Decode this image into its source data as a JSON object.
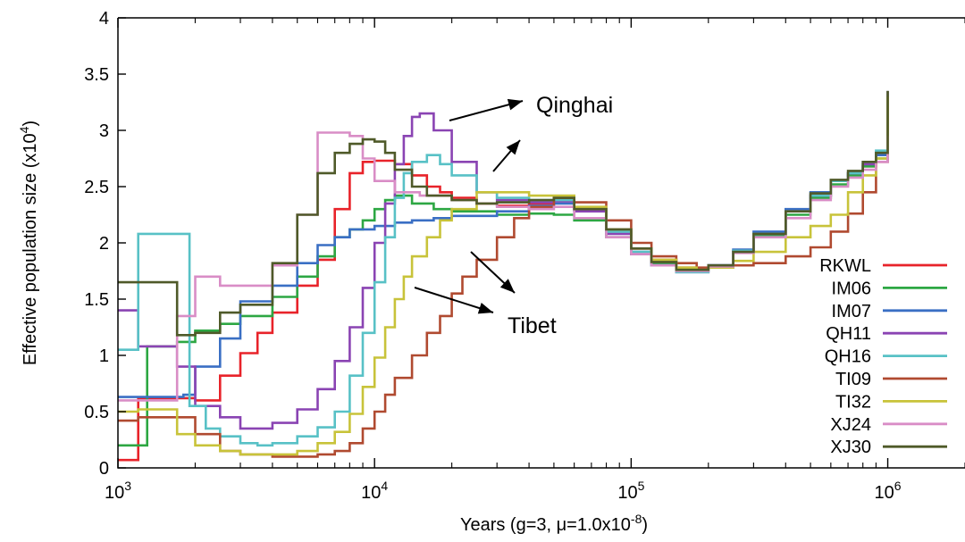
{
  "chart_data": {
    "type": "line",
    "ylabel": "Effective population size (x10",
    "ylabel_sup": "4",
    "ylabel_close": ")",
    "xlabel_pre": "Years (g=3, ",
    "xlabel_mu": "μ",
    "xlabel_mid": "=1.0x10",
    "xlabel_sup": "-8",
    "xlabel_close": ")",
    "x_scale": "log",
    "xlim": [
      1000,
      2000000
    ],
    "ylim": [
      0,
      4
    ],
    "x_ticks": [
      {
        "value": 1000,
        "base": "10",
        "exp": "3"
      },
      {
        "value": 10000,
        "base": "10",
        "exp": "4"
      },
      {
        "value": 100000,
        "base": "10",
        "exp": "5"
      },
      {
        "value": 1000000,
        "base": "10",
        "exp": "6"
      }
    ],
    "y_ticks": [
      {
        "value": 0,
        "label": "0"
      },
      {
        "value": 0.5,
        "label": "0.5"
      },
      {
        "value": 1,
        "label": "1"
      },
      {
        "value": 1.5,
        "label": "1.5"
      },
      {
        "value": 2,
        "label": "2"
      },
      {
        "value": 2.5,
        "label": "2.5"
      },
      {
        "value": 3,
        "label": "3"
      },
      {
        "value": 3.5,
        "label": "3.5"
      },
      {
        "value": 4,
        "label": "4"
      }
    ],
    "legend_position": "right",
    "step": true,
    "series": [
      {
        "name": "RKWL",
        "color": "#e8232a",
        "x": [
          1000,
          1200,
          1400,
          1700,
          2000,
          2500,
          3000,
          3500,
          4000,
          5000,
          6000,
          7000,
          8000,
          9000,
          10000,
          12000,
          14000,
          16000,
          18000,
          20000,
          25000,
          30000,
          40000,
          50000,
          60000,
          80000,
          100000,
          120000,
          150000,
          180000,
          200000,
          250000,
          300000,
          400000,
          500000,
          600000,
          700000,
          800000,
          900000,
          1000000
        ],
        "y": [
          0.07,
          0.62,
          0.62,
          0.62,
          0.6,
          0.82,
          1.02,
          1.2,
          1.38,
          1.62,
          1.85,
          2.3,
          2.62,
          2.72,
          2.73,
          2.7,
          2.6,
          2.5,
          2.45,
          2.4,
          2.35,
          2.33,
          2.35,
          2.38,
          2.3,
          2.12,
          1.95,
          1.85,
          1.78,
          1.77,
          1.8,
          1.92,
          2.08,
          2.28,
          2.42,
          2.55,
          2.62,
          2.68,
          2.78,
          3.3
        ]
      },
      {
        "name": "IM06",
        "color": "#2da743",
        "x": [
          1000,
          1300,
          1500,
          1700,
          2000,
          2500,
          3000,
          4000,
          5000,
          6000,
          7000,
          8000,
          9000,
          10000,
          11000,
          12000,
          14000,
          17000,
          20000,
          30000,
          40000,
          50000,
          60000,
          80000,
          100000,
          120000,
          150000,
          180000,
          200000,
          250000,
          300000,
          400000,
          500000,
          600000,
          700000,
          800000,
          900000,
          1000000
        ],
        "y": [
          0.2,
          1.08,
          1.08,
          1.12,
          1.22,
          1.28,
          1.35,
          1.52,
          1.7,
          1.88,
          2.05,
          2.12,
          2.2,
          2.3,
          2.38,
          2.42,
          2.35,
          2.3,
          2.28,
          2.25,
          2.26,
          2.25,
          2.2,
          2.05,
          1.9,
          1.82,
          1.76,
          1.76,
          1.8,
          1.92,
          2.07,
          2.25,
          2.4,
          2.52,
          2.6,
          2.68,
          2.75,
          3.35
        ]
      },
      {
        "name": "IM07",
        "color": "#3a6fc4",
        "x": [
          1000,
          1500,
          1800,
          2000,
          2500,
          3000,
          4000,
          5000,
          6000,
          7000,
          8000,
          9000,
          10000,
          12000,
          14000,
          17000,
          20000,
          30000,
          40000,
          50000,
          60000,
          80000,
          100000,
          120000,
          150000,
          180000,
          200000,
          250000,
          300000,
          400000,
          500000,
          600000,
          700000,
          800000,
          900000,
          1000000
        ],
        "y": [
          0.63,
          0.63,
          0.65,
          0.9,
          1.15,
          1.48,
          1.62,
          1.82,
          1.98,
          2.05,
          2.12,
          2.12,
          2.15,
          2.18,
          2.2,
          2.22,
          2.24,
          2.28,
          2.33,
          2.35,
          2.28,
          2.1,
          1.92,
          1.8,
          1.75,
          1.75,
          1.8,
          1.94,
          2.1,
          2.3,
          2.45,
          2.55,
          2.62,
          2.7,
          2.78,
          3.3
        ]
      },
      {
        "name": "QH11",
        "color": "#8a44b3",
        "x": [
          1000,
          1200,
          1500,
          1700,
          2000,
          2500,
          3000,
          3500,
          4000,
          5000,
          6000,
          7000,
          8000,
          9000,
          10000,
          11000,
          12000,
          13000,
          14000,
          15000,
          17000,
          20000,
          25000,
          30000,
          40000,
          50000,
          60000,
          80000,
          100000,
          120000,
          150000,
          180000,
          200000,
          250000,
          300000,
          400000,
          500000,
          600000,
          700000,
          800000,
          900000,
          1000000
        ],
        "y": [
          1.4,
          1.08,
          1.08,
          0.9,
          0.55,
          0.45,
          0.35,
          0.35,
          0.4,
          0.52,
          0.7,
          0.95,
          1.25,
          1.6,
          2.0,
          2.35,
          2.7,
          2.95,
          3.12,
          3.15,
          3.0,
          2.72,
          2.45,
          2.38,
          2.36,
          2.37,
          2.28,
          2.08,
          1.9,
          1.8,
          1.74,
          1.74,
          1.8,
          1.93,
          2.08,
          2.28,
          2.42,
          2.55,
          2.62,
          2.7,
          2.8,
          3.35
        ]
      },
      {
        "name": "QH16",
        "color": "#58c1c6",
        "x": [
          1000,
          1200,
          1400,
          1700,
          1900,
          2200,
          2500,
          3000,
          3500,
          4000,
          5000,
          6000,
          7000,
          8000,
          9000,
          10000,
          11000,
          12000,
          13000,
          14000,
          16000,
          18000,
          20000,
          25000,
          30000,
          40000,
          50000,
          60000,
          80000,
          100000,
          120000,
          150000,
          180000,
          200000,
          250000,
          300000,
          400000,
          500000,
          600000,
          700000,
          800000,
          900000,
          1000000
        ],
        "y": [
          1.05,
          2.08,
          2.08,
          2.08,
          0.55,
          0.35,
          0.28,
          0.22,
          0.2,
          0.22,
          0.28,
          0.36,
          0.5,
          0.82,
          1.2,
          1.65,
          2.05,
          2.4,
          2.62,
          2.72,
          2.78,
          2.7,
          2.6,
          2.45,
          2.4,
          2.38,
          2.38,
          2.3,
          2.1,
          1.92,
          1.8,
          1.74,
          1.74,
          1.8,
          1.93,
          2.08,
          2.28,
          2.42,
          2.55,
          2.62,
          2.72,
          2.82,
          3.3
        ]
      },
      {
        "name": "TI09",
        "color": "#b04a30",
        "x": [
          1000,
          1200,
          1500,
          2000,
          2500,
          3000,
          4000,
          5000,
          6000,
          7000,
          8000,
          9000,
          10000,
          11000,
          12000,
          14000,
          16000,
          18000,
          20000,
          22000,
          25000,
          30000,
          35000,
          40000,
          50000,
          60000,
          80000,
          100000,
          120000,
          150000,
          180000,
          200000,
          250000,
          300000,
          400000,
          500000,
          600000,
          700000,
          800000,
          900000,
          1000000
        ],
        "y": [
          0.42,
          0.45,
          0.45,
          0.3,
          0.15,
          0.12,
          0.1,
          0.1,
          0.12,
          0.15,
          0.22,
          0.35,
          0.5,
          0.65,
          0.8,
          1.0,
          1.2,
          1.35,
          1.55,
          1.7,
          1.85,
          2.05,
          2.22,
          2.32,
          2.4,
          2.36,
          2.2,
          2.0,
          1.88,
          1.82,
          1.78,
          1.78,
          1.8,
          1.82,
          1.88,
          1.96,
          2.1,
          2.26,
          2.45,
          2.72,
          3.3
        ]
      },
      {
        "name": "TI32",
        "color": "#c8c33a",
        "x": [
          1000,
          1200,
          1500,
          1700,
          2000,
          2500,
          3000,
          4000,
          5000,
          6000,
          7000,
          8000,
          9000,
          10000,
          11000,
          12000,
          13000,
          14000,
          16000,
          18000,
          20000,
          25000,
          30000,
          40000,
          50000,
          60000,
          80000,
          100000,
          120000,
          150000,
          180000,
          200000,
          250000,
          300000,
          400000,
          500000,
          600000,
          700000,
          800000,
          900000,
          1000000
        ],
        "y": [
          0.5,
          0.52,
          0.52,
          0.3,
          0.2,
          0.15,
          0.12,
          0.12,
          0.15,
          0.22,
          0.32,
          0.48,
          0.72,
          0.98,
          1.25,
          1.5,
          1.7,
          1.88,
          2.05,
          2.2,
          2.3,
          2.45,
          2.45,
          2.42,
          2.42,
          2.32,
          2.12,
          1.95,
          1.85,
          1.78,
          1.76,
          1.78,
          1.84,
          1.92,
          2.05,
          2.15,
          2.25,
          2.45,
          2.6,
          2.75,
          3.3
        ]
      },
      {
        "name": "XJ24",
        "color": "#d98dc6",
        "x": [
          1000,
          1500,
          1700,
          2000,
          2500,
          3000,
          4000,
          5000,
          6000,
          7000,
          8000,
          9000,
          10000,
          12000,
          15000,
          20000,
          25000,
          30000,
          40000,
          50000,
          60000,
          80000,
          100000,
          120000,
          150000,
          180000,
          200000,
          250000,
          300000,
          400000,
          500000,
          600000,
          700000,
          800000,
          900000,
          1000000
        ],
        "y": [
          0.6,
          0.6,
          1.35,
          1.7,
          1.62,
          1.62,
          1.8,
          2.25,
          2.98,
          2.98,
          2.95,
          2.75,
          2.55,
          2.45,
          2.42,
          2.38,
          2.35,
          2.32,
          2.3,
          2.32,
          2.22,
          2.05,
          1.9,
          1.8,
          1.75,
          1.75,
          1.79,
          1.91,
          2.05,
          2.22,
          2.38,
          2.5,
          2.58,
          2.65,
          2.72,
          2.95
        ]
      },
      {
        "name": "XJ30",
        "color": "#4f5a29",
        "x": [
          1000,
          1500,
          1700,
          2000,
          2500,
          3000,
          4000,
          5000,
          6000,
          7000,
          8000,
          9000,
          10000,
          11000,
          12000,
          14000,
          16000,
          20000,
          25000,
          30000,
          40000,
          50000,
          60000,
          80000,
          100000,
          120000,
          150000,
          180000,
          200000,
          250000,
          300000,
          400000,
          500000,
          600000,
          700000,
          800000,
          900000,
          1000000
        ],
        "y": [
          1.65,
          1.65,
          1.18,
          1.2,
          1.38,
          1.45,
          1.82,
          2.25,
          2.62,
          2.8,
          2.88,
          2.92,
          2.9,
          2.8,
          2.65,
          2.5,
          2.42,
          2.38,
          2.35,
          2.36,
          2.38,
          2.4,
          2.3,
          2.12,
          1.95,
          1.83,
          1.76,
          1.76,
          1.8,
          1.92,
          2.08,
          2.28,
          2.44,
          2.56,
          2.64,
          2.72,
          2.8,
          3.35
        ]
      }
    ],
    "annotations": [
      {
        "label": "Qinghai"
      },
      {
        "label": "Tibet"
      }
    ]
  }
}
